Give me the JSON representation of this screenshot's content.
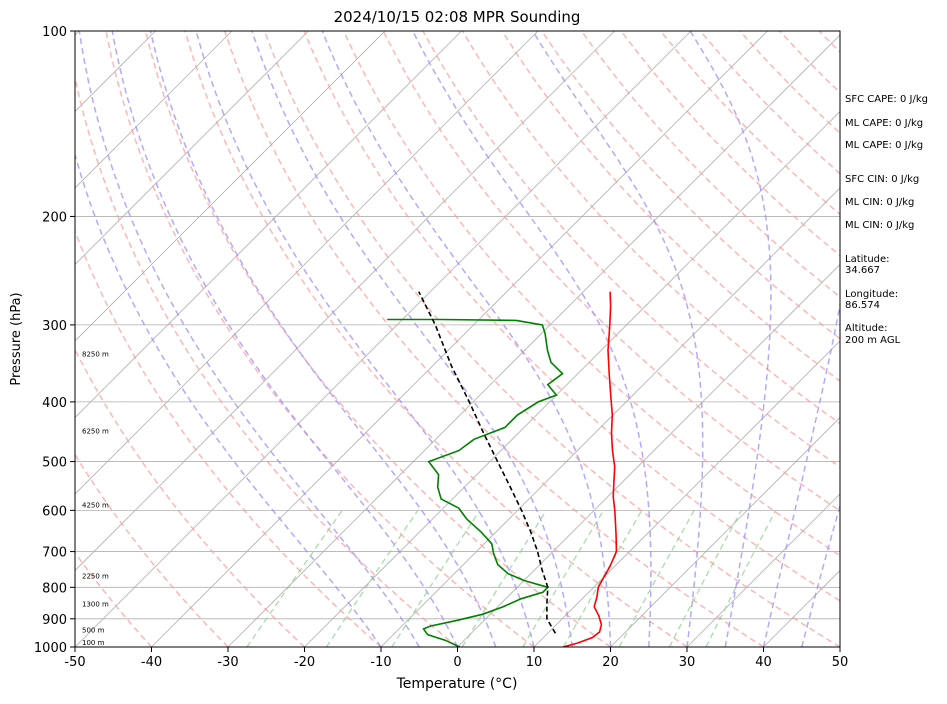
{
  "chart_data": {
    "type": "line",
    "title": "2024/10/15 02:08 MPR Sounding",
    "xlabel": "Temperature (°C)",
    "ylabel": "Pressure (hPa)",
    "xlim": [
      -50,
      50
    ],
    "ylim": [
      1000,
      100
    ],
    "yscale": "log",
    "skew": "skew-T log-P",
    "grid": true,
    "x_ticks": [
      "-50",
      "-40",
      "-30",
      "-20",
      "-10",
      "0",
      "10",
      "20",
      "30",
      "40",
      "50"
    ],
    "y_ticks": [
      "1000",
      "900",
      "800",
      "700",
      "600",
      "500",
      "400",
      "300",
      "200",
      "100"
    ],
    "height_labels": [
      {
        "pressure": 1000,
        "label": "100 m"
      },
      {
        "pressure": 955,
        "label": "500 m"
      },
      {
        "pressure": 866,
        "label": "1300 m"
      },
      {
        "pressure": 780,
        "label": "2250 m"
      },
      {
        "pressure": 598,
        "label": "4250 m"
      },
      {
        "pressure": 454,
        "label": "6250 m"
      },
      {
        "pressure": 340,
        "label": "8250 m"
      }
    ],
    "series": [
      {
        "role": "temperature",
        "color": "#ff0000",
        "points": [
          {
            "p": 1000,
            "t": 13.8
          },
          {
            "p": 985,
            "t": 15.2
          },
          {
            "p": 965,
            "t": 16.4
          },
          {
            "p": 945,
            "t": 16.6
          },
          {
            "p": 920,
            "t": 15.9
          },
          {
            "p": 890,
            "t": 14.4
          },
          {
            "p": 860,
            "t": 12.6
          },
          {
            "p": 830,
            "t": 11.7
          },
          {
            "p": 800,
            "t": 10.6
          },
          {
            "p": 770,
            "t": 10.0
          },
          {
            "p": 740,
            "t": 9.4
          },
          {
            "p": 700,
            "t": 8.3
          },
          {
            "p": 660,
            "t": 6.2
          },
          {
            "p": 630,
            "t": 4.5
          },
          {
            "p": 600,
            "t": 2.7
          },
          {
            "p": 570,
            "t": 0.7
          },
          {
            "p": 540,
            "t": -1.1
          },
          {
            "p": 510,
            "t": -3.0
          },
          {
            "p": 480,
            "t": -5.4
          },
          {
            "p": 450,
            "t": -7.8
          },
          {
            "p": 420,
            "t": -10.1
          },
          {
            "p": 390,
            "t": -12.9
          },
          {
            "p": 360,
            "t": -15.9
          },
          {
            "p": 330,
            "t": -19.1
          },
          {
            "p": 300,
            "t": -22.2
          },
          {
            "p": 280,
            "t": -24.5
          },
          {
            "p": 265,
            "t": -26.5
          }
        ]
      },
      {
        "role": "dewpoint",
        "color": "#008000",
        "points": [
          {
            "p": 1000,
            "t": 0.3
          },
          {
            "p": 975,
            "t": -2.5
          },
          {
            "p": 955,
            "t": -5.5
          },
          {
            "p": 935,
            "t": -6.8
          },
          {
            "p": 925,
            "t": -6.3
          },
          {
            "p": 905,
            "t": -3.5
          },
          {
            "p": 885,
            "t": -1.0
          },
          {
            "p": 860,
            "t": 0.7
          },
          {
            "p": 835,
            "t": 2.0
          },
          {
            "p": 815,
            "t": 4.0
          },
          {
            "p": 800,
            "t": 4.0
          },
          {
            "p": 780,
            "t": 0.0
          },
          {
            "p": 760,
            "t": -3.0
          },
          {
            "p": 735,
            "t": -5.5
          },
          {
            "p": 705,
            "t": -7.5
          },
          {
            "p": 680,
            "t": -9.0
          },
          {
            "p": 650,
            "t": -12.0
          },
          {
            "p": 620,
            "t": -15.5
          },
          {
            "p": 595,
            "t": -18.0
          },
          {
            "p": 575,
            "t": -21.5
          },
          {
            "p": 550,
            "t": -23.5
          },
          {
            "p": 525,
            "t": -25.0
          },
          {
            "p": 500,
            "t": -28.0
          },
          {
            "p": 480,
            "t": -25.5
          },
          {
            "p": 460,
            "t": -25.0
          },
          {
            "p": 440,
            "t": -22.5
          },
          {
            "p": 420,
            "t": -22.5
          },
          {
            "p": 400,
            "t": -21.5
          },
          {
            "p": 390,
            "t": -20.0
          },
          {
            "p": 375,
            "t": -22.5
          },
          {
            "p": 360,
            "t": -22.0
          },
          {
            "p": 345,
            "t": -25.0
          },
          {
            "p": 330,
            "t": -27.0
          },
          {
            "p": 310,
            "t": -29.5
          },
          {
            "p": 300,
            "t": -31.0
          },
          {
            "p": 295,
            "t": -35.0
          },
          {
            "p": 294,
            "t": -45.0
          },
          {
            "p": 294,
            "t": -52.0
          }
        ]
      },
      {
        "role": "parcel",
        "color": "#000000",
        "style": "dashed",
        "points": [
          {
            "p": 950,
            "t": 11.0
          },
          {
            "p": 900,
            "t": 8.0
          },
          {
            "p": 850,
            "t": 6.0
          },
          {
            "p": 800,
            "t": 4.0
          },
          {
            "p": 750,
            "t": 1.0
          },
          {
            "p": 700,
            "t": -2.0
          },
          {
            "p": 650,
            "t": -5.5
          },
          {
            "p": 600,
            "t": -9.5
          },
          {
            "p": 550,
            "t": -14.0
          },
          {
            "p": 500,
            "t": -19.0
          },
          {
            "p": 450,
            "t": -24.5
          },
          {
            "p": 400,
            "t": -30.5
          },
          {
            "p": 350,
            "t": -37.5
          },
          {
            "p": 300,
            "t": -45.0
          },
          {
            "p": 265,
            "t": -51.5
          }
        ]
      }
    ],
    "annotations": [
      "SFC CAPE: 0 J/kg",
      "ML CAPE: 0 J/kg",
      "ML CAPE: 0 J/kg",
      "SFC CIN: 0 J/kg",
      "ML CIN: 0 J/kg",
      "ML CIN: 0 J/kg"
    ],
    "station": {
      "latitude_label": "Latitude:",
      "latitude": "34.667",
      "longitude_label": "Longitude:",
      "longitude": "86.574",
      "altitude_label": "Altitude:",
      "altitude": "200 m AGL"
    },
    "colors": {
      "isotherm": "#b0b0b0",
      "isobar": "#b0b0b0",
      "dry_adiabat": "#ff9e9e",
      "moist_adiabat": "#9a8cff",
      "mixing_ratio": "#8fcf8f"
    }
  }
}
